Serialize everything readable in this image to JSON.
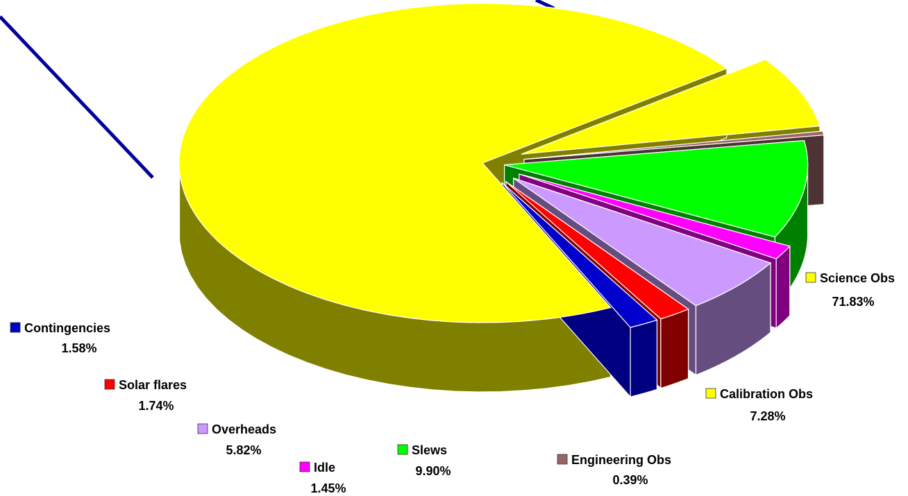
{
  "chart_data": {
    "type": "pie",
    "title": "",
    "slices": [
      {
        "label": "Science Obs",
        "percent_text": "71.83%",
        "value": 71.83,
        "color": "#ffff00",
        "side_color": "#808000",
        "edge_color": "#808000"
      },
      {
        "label": "Calibration Obs",
        "percent_text": "7.28%",
        "value": 7.28,
        "color": "#ffff00",
        "side_color": "#808000",
        "edge_color": "#808000"
      },
      {
        "label": "Engineering Obs",
        "percent_text": "0.39%",
        "value": 0.39,
        "color": "#996666",
        "side_color": "#4d3333",
        "edge_color": "#4d3333"
      },
      {
        "label": "Slews",
        "percent_text": "9.90%",
        "value": 9.9,
        "color": "#00ff00",
        "side_color": "#008000",
        "edge_color": "#008000"
      },
      {
        "label": "Idle",
        "percent_text": "1.45%",
        "value": 1.45,
        "color": "#ff00ff",
        "side_color": "#800080",
        "edge_color": "#800080"
      },
      {
        "label": "Overheads",
        "percent_text": "5.82%",
        "value": 5.82,
        "color": "#cc99ff",
        "side_color": "#664d80",
        "edge_color": "#664d80"
      },
      {
        "label": "Solar flares",
        "percent_text": "1.74%",
        "value": 1.74,
        "color": "#ff0000",
        "side_color": "#800000",
        "edge_color": "#800000"
      },
      {
        "label": "Contingencies",
        "percent_text": "1.58%",
        "value": 1.58,
        "color": "#0000cc",
        "side_color": "#000080",
        "edge_color": "#000080"
      }
    ],
    "legend": "labels beside slices"
  }
}
